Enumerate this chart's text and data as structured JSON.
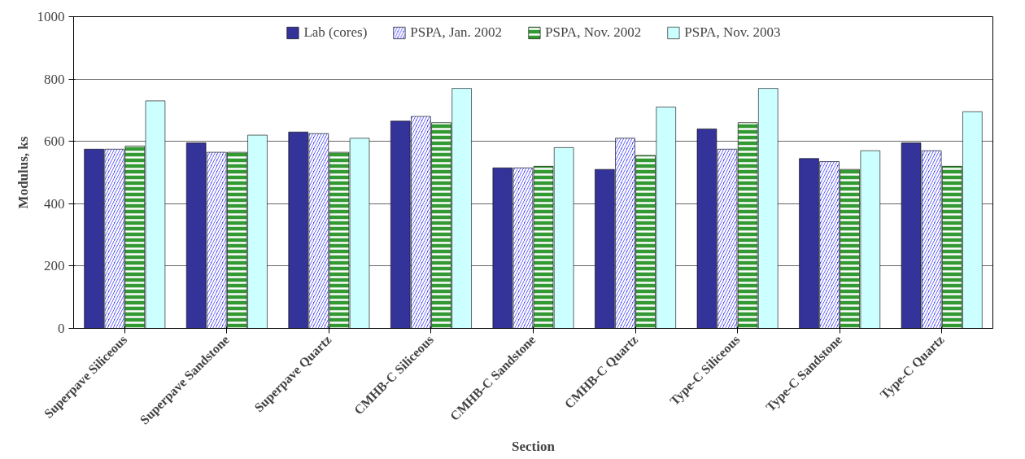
{
  "chart_data": {
    "type": "bar",
    "xlabel": "Section",
    "ylabel": "Modulus, ks",
    "categories": [
      "Superpave Siliceous",
      "Superpave Sandstone",
      "Superpave Quartz",
      "CMHB-C Siliceous",
      "CMHB-C Sandstone",
      "CMHB-C Quartz",
      "Type-C Siliceous",
      "Type-C Sandstone",
      "Type-C Quartz"
    ],
    "series": [
      {
        "name": "Lab (cores)",
        "color": "#333399",
        "values": [
          575,
          595,
          630,
          665,
          515,
          510,
          640,
          545,
          595
        ]
      },
      {
        "name": "PSPA, Jan. 2002",
        "color": "#3333ff",
        "values": [
          575,
          565,
          625,
          680,
          515,
          610,
          575,
          535,
          570
        ]
      },
      {
        "name": "PSPA, Nov. 2002",
        "color": "#339933",
        "values": [
          585,
          565,
          565,
          660,
          520,
          555,
          660,
          510,
          520
        ]
      },
      {
        "name": "PSPA, Nov. 2003",
        "color": "#ccffff",
        "values": [
          730,
          620,
          610,
          770,
          580,
          710,
          770,
          570,
          695
        ]
      }
    ],
    "ylim": [
      0,
      1000
    ],
    "yticks": [
      0,
      200,
      400,
      600,
      800,
      1000
    ],
    "grid": "y",
    "legend": "top"
  }
}
